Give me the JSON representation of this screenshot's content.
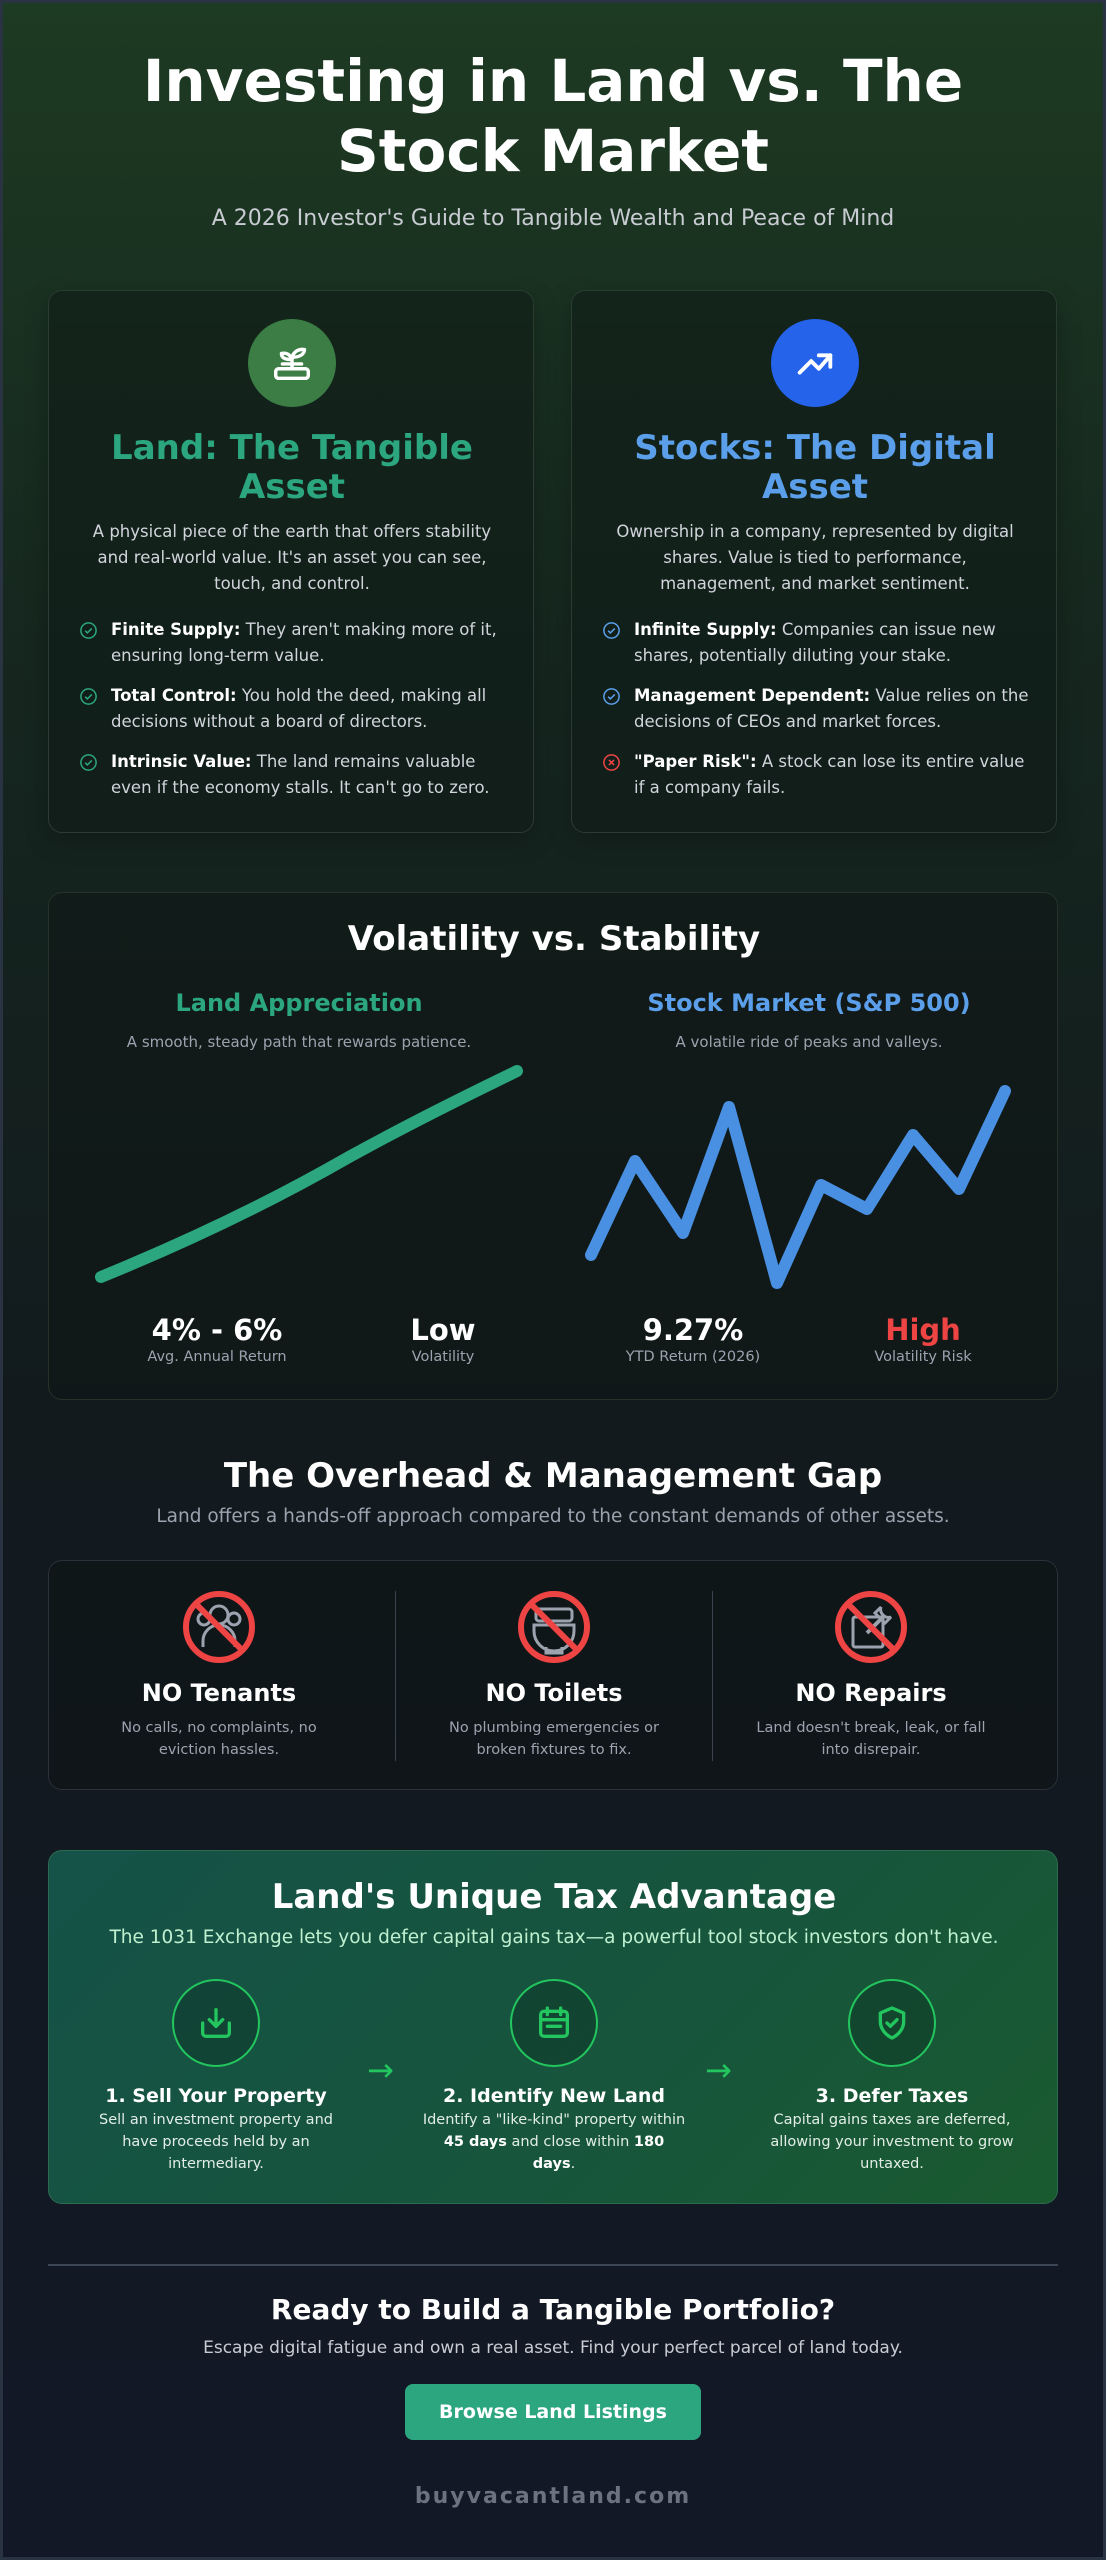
{
  "header": {
    "title": "Investing in Land vs. The Stock Market",
    "subtitle": "A 2026 Investor's Guide to Tangible Wealth and Peace of Mind"
  },
  "land_card": {
    "icon": "sprout-icon",
    "title": "Land: The Tangible Asset",
    "description": "A physical piece of the earth that offers stability and real-world value. It's an asset you can see, touch, and control.",
    "points": [
      {
        "icon": "check-circle-icon",
        "label": "Finite Supply:",
        "text": " They aren't making more of it, ensuring long-term value."
      },
      {
        "icon": "check-circle-icon",
        "label": "Total Control:",
        "text": " You hold the deed, making all decisions without a board of directors."
      },
      {
        "icon": "check-circle-icon",
        "label": "Intrinsic Value:",
        "text": " The land remains valuable even if the economy stalls. It can't go to zero."
      }
    ],
    "accent": "#2ba67f"
  },
  "stock_card": {
    "icon": "trending-up-icon",
    "title": "Stocks: The Digital Asset",
    "description": "Ownership in a company, represented by digital shares. Value is tied to performance, management, and market sentiment.",
    "points": [
      {
        "icon": "check-circle-icon",
        "label": "Infinite Supply:",
        "text": " Companies can issue new shares, potentially diluting your stake."
      },
      {
        "icon": "check-circle-icon",
        "label": "Management Dependent:",
        "text": " Value relies on the decisions of CEOs and market forces."
      },
      {
        "icon": "x-circle-icon",
        "label": "\"Paper Risk\":",
        "text": " A stock can lose its entire value if a company fails."
      }
    ],
    "accent": "#5b9fea"
  },
  "volatility": {
    "title": "Volatility vs. Stability",
    "land": {
      "title": "Land Appreciation",
      "subtitle": "A smooth, steady path that rewards patience.",
      "stats": [
        {
          "value": "4% - 6%",
          "label": "Avg. Annual Return"
        },
        {
          "value": "Low",
          "label": "Volatility"
        }
      ],
      "color": "#2ba67f"
    },
    "stock": {
      "title": "Stock Market (S&P 500)",
      "subtitle": "A volatile ride of peaks and valleys.",
      "stats": [
        {
          "value": "9.27%",
          "label": "YTD Return (2026)"
        },
        {
          "value": "High",
          "label": "Volatility Risk"
        }
      ],
      "color": "#4a90e2",
      "high_color": "#ef4444"
    }
  },
  "overhead": {
    "title": "The Overhead & Management Gap",
    "subtitle": "Land offers a hands-off approach compared to the constant demands of other assets.",
    "items": [
      {
        "icon": "no-tenants-icon",
        "title": "NO Tenants",
        "text": "No calls, no complaints, no eviction hassles."
      },
      {
        "icon": "no-toilets-icon",
        "title": "NO Toilets",
        "text": "No plumbing emergencies or broken fixtures to fix."
      },
      {
        "icon": "no-repairs-icon",
        "title": "NO Repairs",
        "text": "Land doesn't break, leak, or fall into disrepair."
      }
    ]
  },
  "tax": {
    "title": "Land's Unique Tax Advantage",
    "subtitle": "The 1031 Exchange lets you defer capital gains tax—a powerful tool stock investors don't have.",
    "steps": [
      {
        "icon": "download-box-icon",
        "title": "1. Sell Your Property",
        "text": "Sell an investment property and have proceeds held by an intermediary."
      },
      {
        "icon": "calendar-icon",
        "title": "2. Identify New Land",
        "text_a": "Identify a \"like-kind\" property within ",
        "bold_a": "45 days",
        "text_b": " and close within ",
        "bold_b": "180 days",
        "text_c": "."
      },
      {
        "icon": "shield-check-icon",
        "title": "3. Defer Taxes",
        "text": "Capital gains taxes are deferred, allowing your investment to grow untaxed."
      }
    ],
    "arrow": "→"
  },
  "cta": {
    "title": "Ready to Build a Tangible Portfolio?",
    "subtitle": "Escape digital fatigue and own a real asset. Find your perfect parcel of land today.",
    "button": "Browse Land Listings"
  },
  "footer": {
    "site": "buyvacantland.com"
  }
}
